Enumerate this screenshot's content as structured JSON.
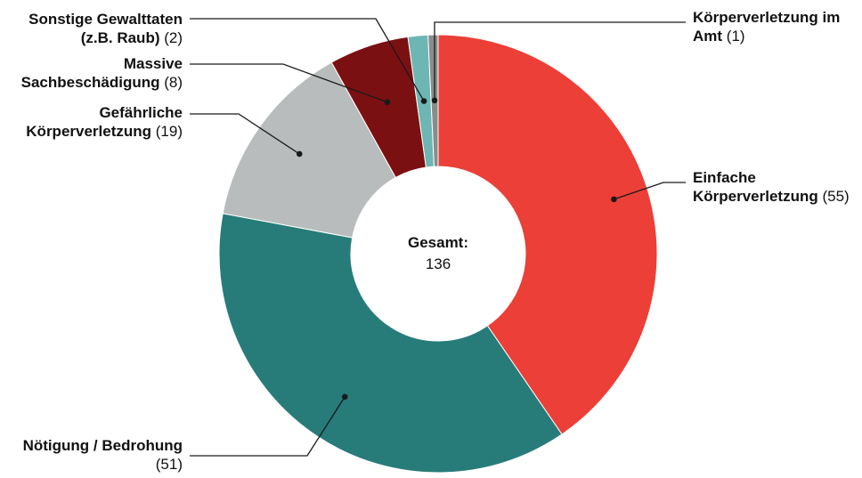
{
  "chart_data": {
    "type": "pie",
    "variant": "donut",
    "center": {
      "title": "Gesamt:",
      "value": "136"
    },
    "slices": [
      {
        "name": "Einfache Körperverletzung",
        "value": 55,
        "color": "#ec3f37",
        "label_lines": [
          {
            "bold": "Einfache",
            "normal": ""
          },
          {
            "bold": "Körperverletzung",
            "normal": " (55)"
          }
        ]
      },
      {
        "name": "Nötigung / Bedrohung",
        "value": 51,
        "color": "#277c7a",
        "label_lines": [
          {
            "bold": "Nötigung / Bedrohung",
            "normal": ""
          },
          {
            "bold": "",
            "normal": "(51)"
          }
        ]
      },
      {
        "name": "Gefährliche Körperverletzung",
        "value": 19,
        "color": "#b9bcbc",
        "label_lines": [
          {
            "bold": "Gefährliche",
            "normal": ""
          },
          {
            "bold": "Körperverletzung",
            "normal": " (19)"
          }
        ]
      },
      {
        "name": "Massive Sachbeschädigung",
        "value": 8,
        "color": "#7b1012",
        "label_lines": [
          {
            "bold": "Massive",
            "normal": ""
          },
          {
            "bold": "Sachbeschädigung",
            "normal": " (8)"
          }
        ]
      },
      {
        "name": "Sonstige Gewalttaten (z.B. Raub)",
        "value": 2,
        "color": "#6db6b3",
        "label_lines": [
          {
            "bold": "Sonstige Gewalttaten",
            "normal": ""
          },
          {
            "bold": "(z.B. Raub)",
            "normal": " (2)"
          }
        ]
      },
      {
        "name": "Körperverletzung im Amt",
        "value": 1,
        "color": "#8a8c8c",
        "label_lines": [
          {
            "bold": "Körperverletzung im",
            "normal": ""
          },
          {
            "bold": "Amt",
            "normal": " (1)"
          }
        ]
      }
    ]
  }
}
